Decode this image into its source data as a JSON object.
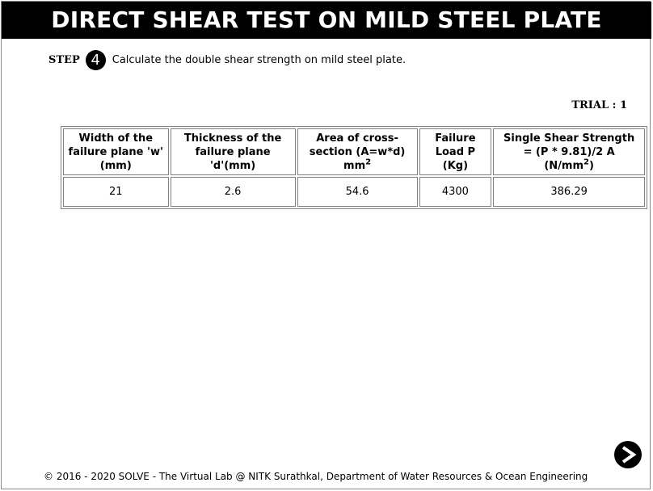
{
  "header": {
    "title": "DIRECT SHEAR TEST ON MILD STEEL PLATE"
  },
  "step": {
    "label": "STEP",
    "number": "4",
    "instruction": "Calculate the double shear strength on mild steel plate."
  },
  "trial": {
    "label": "TRIAL : 1"
  },
  "table": {
    "columns": [
      {
        "line1": "Width of the",
        "line2": "failure plane 'w'",
        "line3": "(mm)"
      },
      {
        "line1": "Thickness of the",
        "line2": "failure plane",
        "line3": "'d'(mm)"
      },
      {
        "line1": "Area of cross-",
        "line2": "section (A=w*d)",
        "line3": "mm",
        "sup": "2"
      },
      {
        "line1": "Failure",
        "line2": "Load P",
        "line3": "(Kg)"
      },
      {
        "line1": "Single Shear Strength",
        "line2": "= (P * 9.81)/2 A",
        "line3": "(N/mm",
        "sup": "2",
        "line3_end": ")"
      }
    ],
    "rows": [
      [
        "21",
        "2.6",
        "54.6",
        "4300",
        "386.29"
      ]
    ]
  },
  "navigation": {
    "next_icon": "arrow-right-icon"
  },
  "footer": {
    "text": "© 2016 - 2020 SOLVE - The Virtual Lab @ NITK Surathkal, Department of Water Resources & Ocean Engineering"
  }
}
